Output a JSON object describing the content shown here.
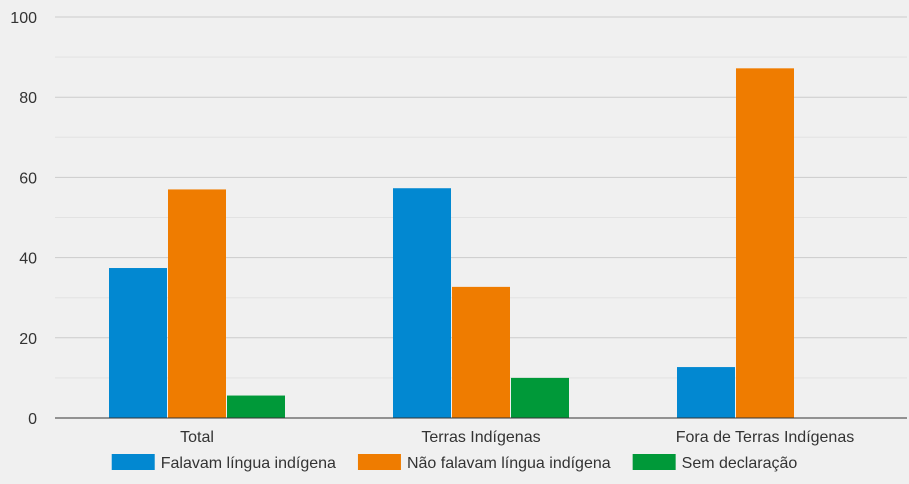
{
  "chart_data": {
    "type": "bar",
    "categories": [
      "Total",
      "Terras Indígenas",
      "Fora de Terras Indígenas"
    ],
    "series": [
      {
        "name": "Falavam língua indígena",
        "values": [
          37.4,
          57.3,
          12.7
        ],
        "color": "#0288d1"
      },
      {
        "name": "Não falavam língua indígena",
        "values": [
          57.0,
          32.7,
          87.2
        ],
        "color": "#ef7c00"
      },
      {
        "name": "Sem declaração",
        "values": [
          5.6,
          10.0,
          0.1
        ],
        "color": "#009939"
      }
    ],
    "yticks": [
      "0",
      "20",
      "40",
      "60",
      "80",
      "100"
    ],
    "ylim": [
      0,
      100
    ],
    "grid": true,
    "legend_position": "bottom",
    "colors": {
      "background": "#f0f0f0",
      "gridline": "#cccccc",
      "minor_gridline": "#e2e2e2",
      "axis": "#333333",
      "text": "#333333"
    }
  }
}
